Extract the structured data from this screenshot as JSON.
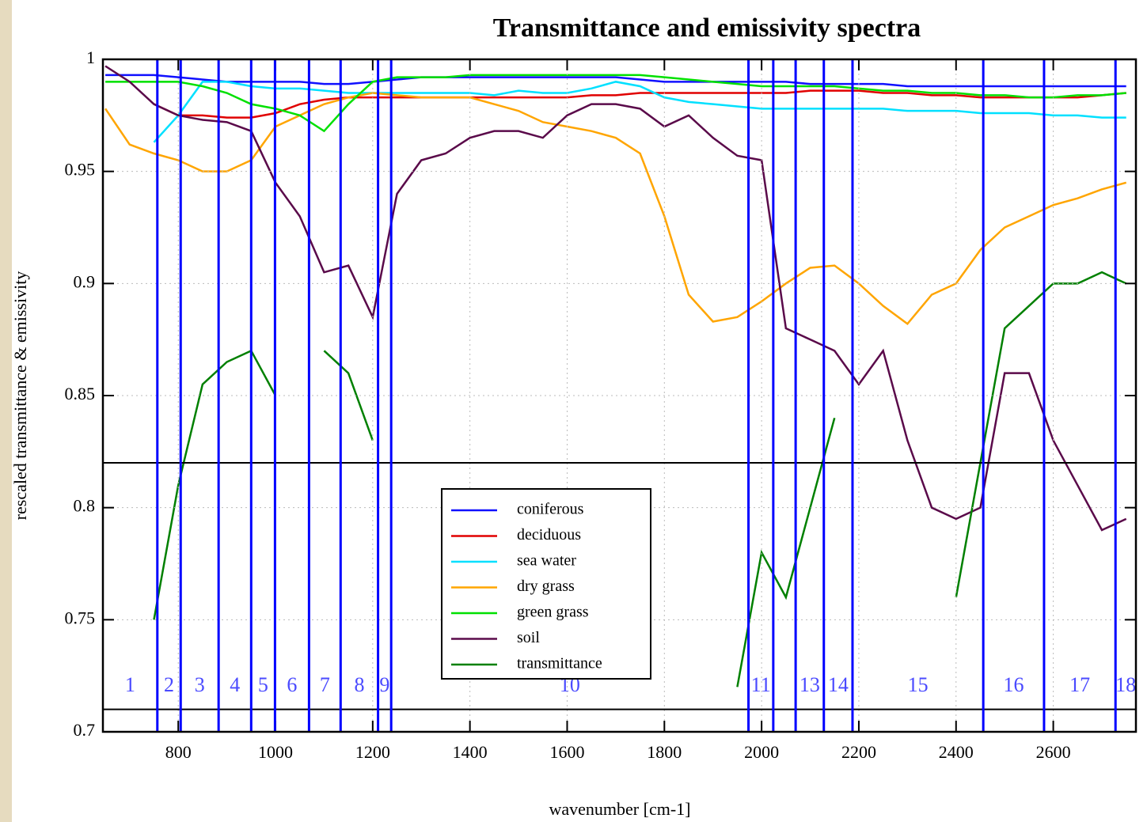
{
  "chart_data": {
    "type": "line",
    "title": "Transmittance and emissivity spectra",
    "x_label": "wavenumber [cm-1]",
    "y_label": "rescaled transmittance & emissivity",
    "x": [
      650,
      700,
      750,
      800,
      850,
      900,
      950,
      1000,
      1050,
      1100,
      1150,
      1200,
      1250,
      1300,
      1350,
      1400,
      1450,
      1500,
      1550,
      1600,
      1650,
      1700,
      1750,
      1800,
      1850,
      1900,
      1950,
      2000,
      2050,
      2100,
      2150,
      2200,
      2250,
      2300,
      2350,
      2400,
      2450,
      2500,
      2550,
      2600,
      2650,
      2700,
      2750
    ],
    "series": [
      {
        "name": "coniferous",
        "color": "#1010ff",
        "values": [
          0.993,
          0.993,
          0.993,
          0.992,
          0.991,
          0.99,
          0.99,
          0.99,
          0.99,
          0.989,
          0.989,
          0.99,
          0.991,
          0.992,
          0.992,
          0.992,
          0.992,
          0.992,
          0.992,
          0.992,
          0.992,
          0.992,
          0.991,
          0.99,
          0.99,
          0.99,
          0.99,
          0.99,
          0.99,
          0.989,
          0.989,
          0.989,
          0.989,
          0.988,
          0.988,
          0.988,
          0.988,
          0.988,
          0.988,
          0.988,
          0.988,
          0.988,
          0.988
        ]
      },
      {
        "name": "deciduous",
        "color": "#e00000",
        "values": [
          null,
          null,
          0.98,
          0.975,
          0.975,
          0.974,
          0.974,
          0.976,
          0.98,
          0.982,
          0.983,
          0.983,
          0.983,
          0.983,
          0.983,
          0.983,
          0.983,
          0.983,
          0.983,
          0.983,
          0.984,
          0.984,
          0.985,
          0.985,
          0.985,
          0.985,
          0.985,
          0.985,
          0.985,
          0.986,
          0.986,
          0.986,
          0.985,
          0.985,
          0.984,
          0.984,
          0.983,
          0.983,
          0.983,
          0.983,
          0.983,
          0.984,
          0.985
        ]
      },
      {
        "name": "sea water",
        "color": "#00e0ff",
        "values": [
          null,
          null,
          0.963,
          0.975,
          0.99,
          0.99,
          0.988,
          0.987,
          0.987,
          0.986,
          0.985,
          0.985,
          0.985,
          0.985,
          0.985,
          0.985,
          0.984,
          0.986,
          0.985,
          0.985,
          0.987,
          0.99,
          0.988,
          0.983,
          0.981,
          0.98,
          0.979,
          0.978,
          0.978,
          0.978,
          0.978,
          0.978,
          0.978,
          0.977,
          0.977,
          0.977,
          0.976,
          0.976,
          0.976,
          0.975,
          0.975,
          0.974,
          0.974
        ]
      },
      {
        "name": "dry grass",
        "color": "#ffa500",
        "values": [
          0.978,
          0.962,
          0.958,
          0.955,
          0.95,
          0.95,
          0.955,
          0.97,
          0.975,
          0.98,
          0.983,
          0.985,
          0.984,
          0.983,
          0.983,
          0.983,
          0.98,
          0.977,
          0.972,
          0.97,
          0.968,
          0.965,
          0.958,
          0.93,
          0.895,
          0.883,
          0.885,
          0.892,
          0.9,
          0.907,
          0.908,
          0.9,
          0.89,
          0.882,
          0.895,
          0.9,
          0.915,
          0.925,
          0.93,
          0.935,
          0.938,
          0.942,
          0.945
        ]
      },
      {
        "name": "green grass",
        "color": "#00e000",
        "values": [
          0.99,
          0.99,
          0.99,
          0.99,
          0.988,
          0.985,
          0.98,
          0.978,
          0.975,
          0.968,
          0.98,
          0.99,
          0.992,
          0.992,
          0.992,
          0.993,
          0.993,
          0.993,
          0.993,
          0.993,
          0.993,
          0.993,
          0.993,
          0.992,
          0.991,
          0.99,
          0.989,
          0.988,
          0.988,
          0.988,
          0.988,
          0.987,
          0.986,
          0.986,
          0.985,
          0.985,
          0.984,
          0.984,
          0.983,
          0.983,
          0.984,
          0.984,
          0.985
        ]
      },
      {
        "name": "soil",
        "color": "#5a0a4a",
        "values": [
          0.997,
          0.99,
          0.98,
          0.975,
          0.973,
          0.972,
          0.968,
          0.945,
          0.93,
          0.905,
          0.908,
          0.885,
          0.94,
          0.955,
          0.958,
          0.965,
          0.968,
          0.968,
          0.965,
          0.975,
          0.98,
          0.98,
          0.978,
          0.97,
          0.975,
          0.965,
          0.957,
          0.955,
          0.88,
          0.875,
          0.87,
          0.855,
          0.87,
          0.83,
          0.8,
          0.795,
          0.8,
          0.86,
          0.86,
          0.83,
          0.81,
          0.79,
          0.795
        ]
      },
      {
        "name": "transmittance",
        "color": "#008000",
        "values": [
          null,
          null,
          0.75,
          0.81,
          0.855,
          0.865,
          0.87,
          0.85,
          null,
          0.87,
          0.86,
          0.83,
          null,
          null,
          null,
          null,
          null,
          null,
          null,
          null,
          null,
          null,
          null,
          null,
          null,
          null,
          0.72,
          0.78,
          0.76,
          0.8,
          0.84,
          null,
          null,
          null,
          null,
          0.76,
          0.82,
          0.88,
          0.89,
          0.9,
          0.9,
          0.905,
          0.9
        ]
      }
    ],
    "band_edges": [
      757,
      805,
      883,
      950,
      999,
      1069,
      1134,
      1211,
      1238,
      1973,
      2024,
      2070,
      2128,
      2187,
      2456,
      2581,
      2728
    ],
    "band_labels": [
      "1",
      "2",
      "3",
      "4",
      "5",
      "6",
      "7",
      "8",
      "9",
      "10",
      "11",
      null,
      "13",
      "14",
      "15",
      "16",
      "17",
      "18"
    ],
    "reference_lines": [
      0.82,
      0.71
    ],
    "xlim": [
      645,
      2770
    ],
    "ylim": [
      0.7,
      1
    ],
    "xticks": [
      800,
      1000,
      1200,
      1400,
      1600,
      1800,
      2000,
      2200,
      2400,
      2600
    ],
    "yticks": [
      0.7,
      0.75,
      0.8,
      0.85,
      0.9,
      0.95,
      1
    ],
    "grid": true
  }
}
